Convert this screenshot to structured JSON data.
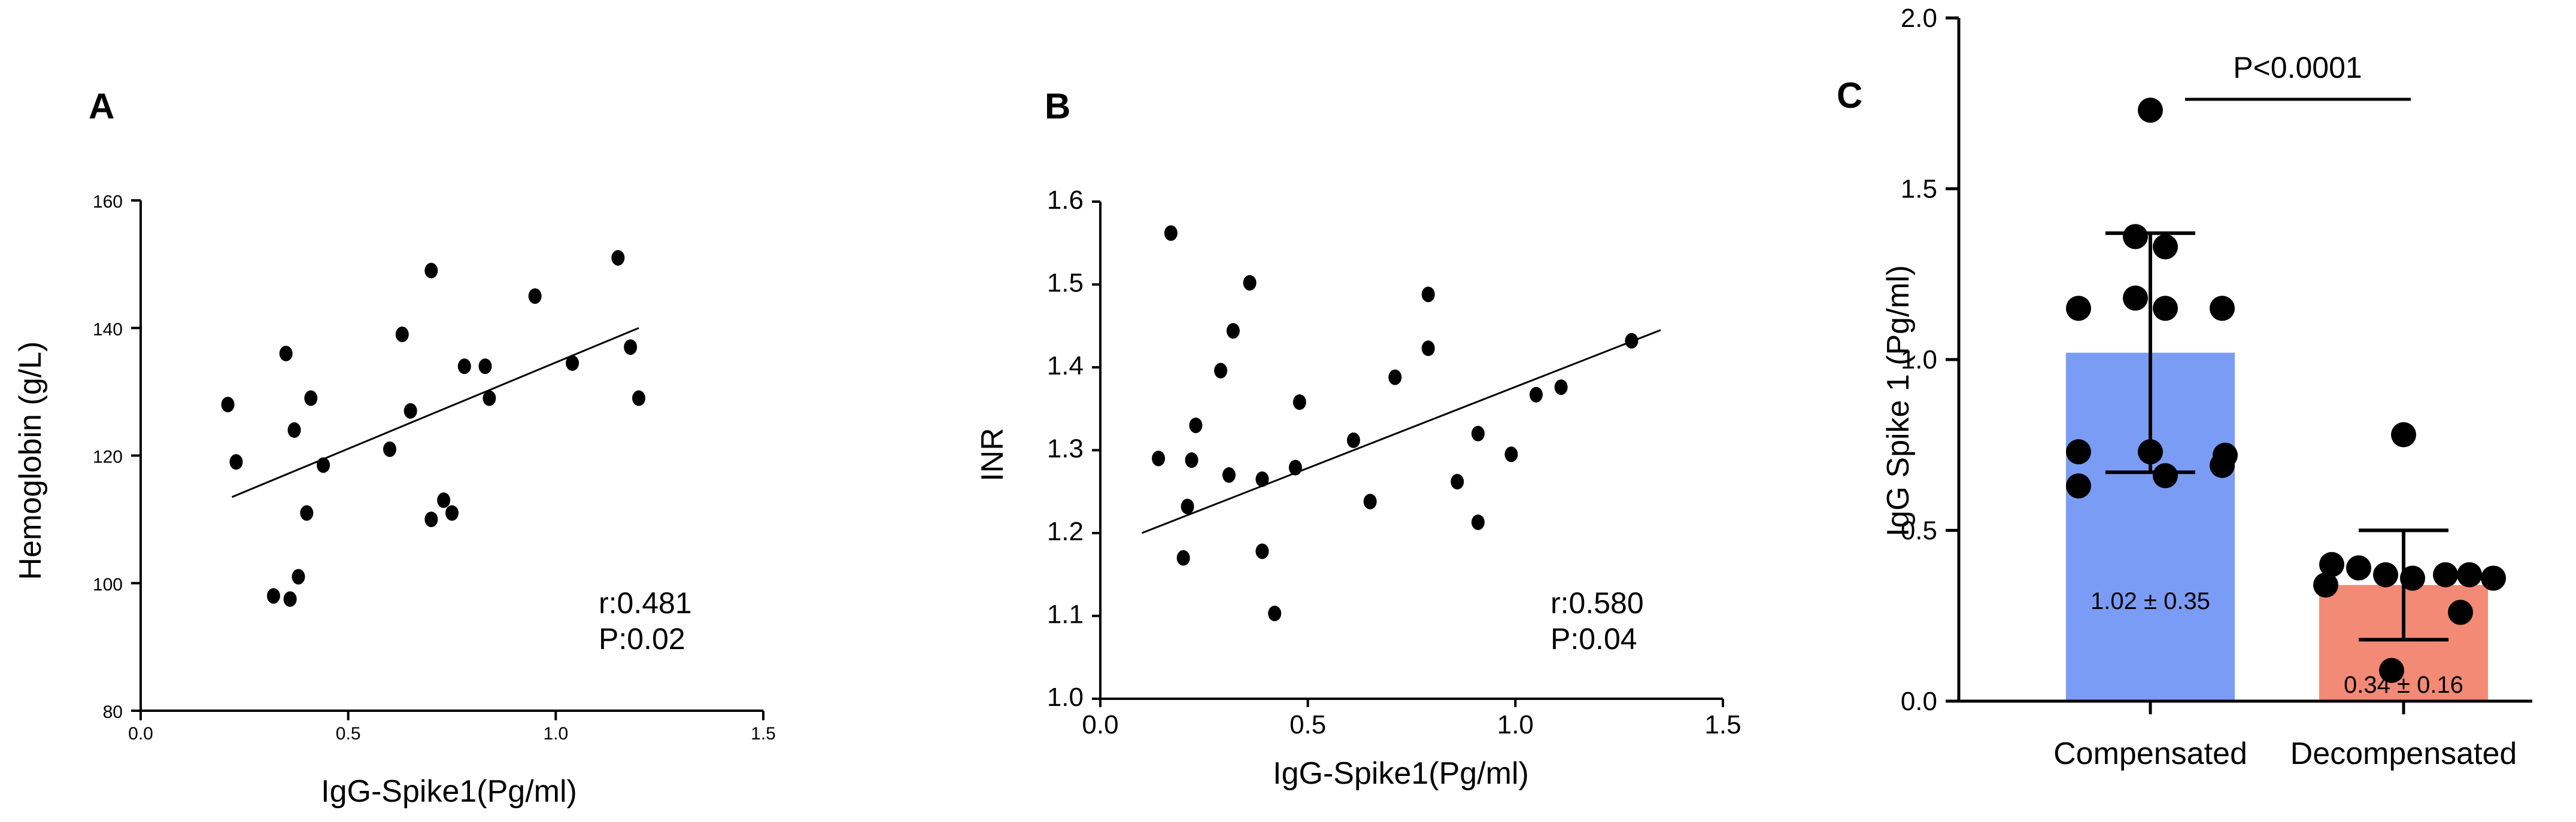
{
  "chart_data": [
    {
      "panel": "A",
      "type": "scatter",
      "xlabel": "IgG-Spike1(Pg/ml)",
      "ylabel": "Hemoglobin (g/L)",
      "xlim": [
        0,
        1.5
      ],
      "ylim": [
        80,
        160
      ],
      "xticks": [
        0,
        0.5,
        1,
        1.5
      ],
      "xtick_labels": [
        "0.0",
        "0.5",
        "1.0",
        "1.5"
      ],
      "yticks": [
        80,
        100,
        120,
        140,
        160
      ],
      "ytick_labels": [
        "80",
        "100",
        "120",
        "140",
        "160"
      ],
      "points": [
        {
          "x": 0.21,
          "y": 128
        },
        {
          "x": 0.23,
          "y": 119
        },
        {
          "x": 0.32,
          "y": 98
        },
        {
          "x": 0.35,
          "y": 136
        },
        {
          "x": 0.36,
          "y": 97.5
        },
        {
          "x": 0.37,
          "y": 124
        },
        {
          "x": 0.38,
          "y": 101
        },
        {
          "x": 0.4,
          "y": 111
        },
        {
          "x": 0.41,
          "y": 129
        },
        {
          "x": 0.44,
          "y": 118.5
        },
        {
          "x": 0.6,
          "y": 121
        },
        {
          "x": 0.63,
          "y": 139
        },
        {
          "x": 0.65,
          "y": 127
        },
        {
          "x": 0.7,
          "y": 149
        },
        {
          "x": 0.7,
          "y": 110
        },
        {
          "x": 0.73,
          "y": 113
        },
        {
          "x": 0.75,
          "y": 111
        },
        {
          "x": 0.78,
          "y": 134
        },
        {
          "x": 0.83,
          "y": 134
        },
        {
          "x": 0.84,
          "y": 129
        },
        {
          "x": 0.95,
          "y": 145
        },
        {
          "x": 1.04,
          "y": 134.5
        },
        {
          "x": 1.15,
          "y": 151
        },
        {
          "x": 1.18,
          "y": 137
        },
        {
          "x": 1.2,
          "y": 129
        }
      ],
      "fit_line": {
        "x": [
          0.22,
          1.2
        ],
        "y": [
          113.5,
          140
        ]
      },
      "annotation": [
        "r:0.481",
        "P:0.02"
      ]
    },
    {
      "panel": "B",
      "type": "scatter",
      "xlabel": "IgG-Spike1(Pg/ml)",
      "ylabel": "INR",
      "xlim": [
        0,
        1.5
      ],
      "ylim": [
        1.0,
        1.6
      ],
      "xticks": [
        0,
        0.5,
        1,
        1.5
      ],
      "xtick_labels": [
        "0.0",
        "0.5",
        "1.0",
        "1.5"
      ],
      "yticks": [
        1.0,
        1.1,
        1.2,
        1.3,
        1.4,
        1.5,
        1.6
      ],
      "ytick_labels": [
        "1.0",
        "1.1",
        "1.2",
        "1.3",
        "1.4",
        "1.5",
        "1.6"
      ],
      "points": [
        {
          "x": 0.14,
          "y": 1.29
        },
        {
          "x": 0.17,
          "y": 1.562
        },
        {
          "x": 0.2,
          "y": 1.17
        },
        {
          "x": 0.21,
          "y": 1.232
        },
        {
          "x": 0.22,
          "y": 1.288
        },
        {
          "x": 0.23,
          "y": 1.33
        },
        {
          "x": 0.29,
          "y": 1.396
        },
        {
          "x": 0.31,
          "y": 1.27
        },
        {
          "x": 0.32,
          "y": 1.444
        },
        {
          "x": 0.36,
          "y": 1.502
        },
        {
          "x": 0.39,
          "y": 1.265
        },
        {
          "x": 0.39,
          "y": 1.178
        },
        {
          "x": 0.42,
          "y": 1.103
        },
        {
          "x": 0.47,
          "y": 1.279
        },
        {
          "x": 0.48,
          "y": 1.358
        },
        {
          "x": 0.61,
          "y": 1.312
        },
        {
          "x": 0.65,
          "y": 1.238
        },
        {
          "x": 0.71,
          "y": 1.388
        },
        {
          "x": 0.79,
          "y": 1.488
        },
        {
          "x": 0.79,
          "y": 1.423
        },
        {
          "x": 0.86,
          "y": 1.262
        },
        {
          "x": 0.91,
          "y": 1.213
        },
        {
          "x": 0.91,
          "y": 1.32
        },
        {
          "x": 0.99,
          "y": 1.295
        },
        {
          "x": 1.05,
          "y": 1.367
        },
        {
          "x": 1.11,
          "y": 1.376
        },
        {
          "x": 1.28,
          "y": 1.432
        }
      ],
      "fit_line": {
        "x": [
          0.1,
          1.35
        ],
        "y": [
          1.2,
          1.445
        ]
      },
      "annotation": [
        "r:0.580",
        "P:0.04"
      ]
    },
    {
      "panel": "C",
      "type": "bar",
      "ylabel": "IgG Spike 1  (Pg/ml)",
      "ylim": [
        0,
        2.0
      ],
      "yticks": [
        0,
        0.5,
        1,
        1.5,
        2
      ],
      "ytick_labels": [
        "0.0",
        "0.5",
        "1.0",
        "1.5",
        "2.0"
      ],
      "categories": [
        "Compensated",
        "Decompensated"
      ],
      "values": [
        1.02,
        0.34
      ],
      "errors": [
        0.35,
        0.16
      ],
      "bar_labels": [
        "1.02 ± 0.35",
        "0.34 ± 0.16"
      ],
      "colors": [
        "#7b9cf4",
        "#f38a75"
      ],
      "points": [
        [
          1.73,
          1.36,
          1.33,
          1.18,
          1.15,
          1.15,
          1.15,
          0.73,
          0.73,
          0.72,
          0.69,
          0.66,
          0.63
        ],
        [
          0.78,
          0.4,
          0.39,
          0.37,
          0.37,
          0.37,
          0.36,
          0.36,
          0.34,
          0.26,
          0.09
        ]
      ],
      "significance": "P<0.0001"
    }
  ],
  "panel_labels": [
    "A",
    "B",
    "C"
  ]
}
